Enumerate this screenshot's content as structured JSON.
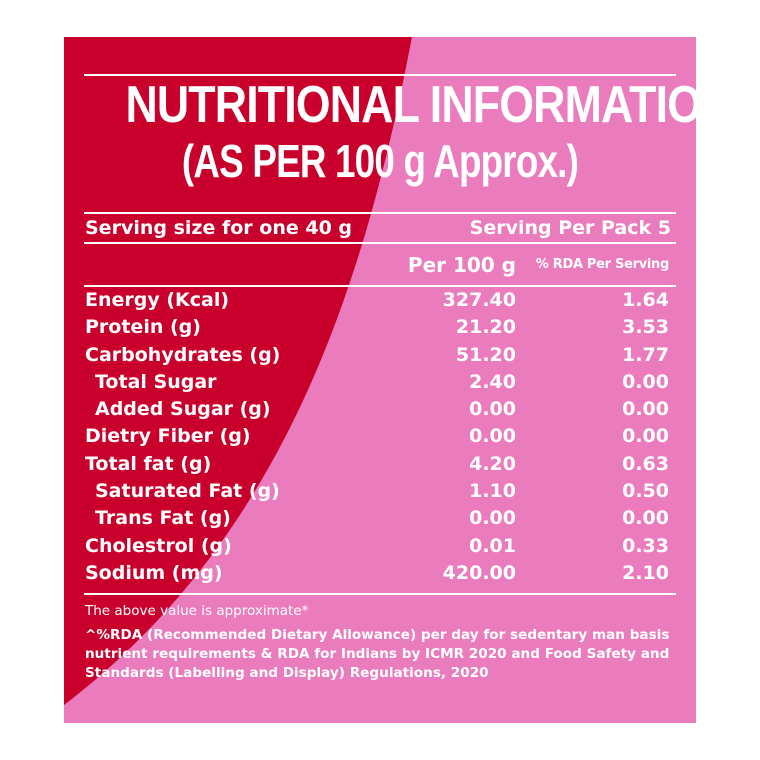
{
  "title_line1": "NUTRITIONAL INFORMATION",
  "title_line2": "(AS PER 100 g Approx.)",
  "serving_size": "Serving size for one 40 g",
  "serving_per_pack": "Serving Per Pack 5",
  "col_per100": "Per 100 g",
  "col_rda": "% RDA Per Serving",
  "rows": [
    {
      "label": "Energy (Kcal)",
      "per100": "327.40",
      "rda": "1.64"
    },
    {
      "label": "Protein (g)",
      "per100": "21.20",
      "rda": "3.53"
    },
    {
      "label": "Carbohydrates (g)",
      "per100": "51.20",
      "rda": "1.77"
    },
    {
      "label": "Total Sugar",
      "per100": "2.40",
      "rda": "0.00"
    },
    {
      "label": "Added Sugar (g)",
      "per100": "0.00",
      "rda": "0.00"
    },
    {
      "label": "Dietry Fiber (g)",
      "per100": "0.00",
      "rda": "0.00"
    },
    {
      "label": "Total fat (g)",
      "per100": "4.20",
      "rda": "0.63"
    },
    {
      "label": "Saturated Fat (g)",
      "per100": "1.10",
      "rda": "0.50"
    },
    {
      "label": "Trans Fat (g)",
      "per100": "0.00",
      "rda": "0.00"
    },
    {
      "label": "Cholestrol (g)",
      "per100": "0.01",
      "rda": "0.33"
    },
    {
      "label": "Sodium (mg)",
      "per100": "420.00",
      "rda": "2.10"
    }
  ],
  "footnote_approx": "The above value is approximate*",
  "footnote_rda": "^%RDA (Recommended Dietary Allowance) per day for sedentary man basis nutrient requirements & RDA for Indians by ICMR 2020 and Food Safety and Standards (Labelling and Display) Regulations, 2020",
  "colors": {
    "red": "#c8002b",
    "pink": "#ea7cbd",
    "text": "#ffffff"
  }
}
